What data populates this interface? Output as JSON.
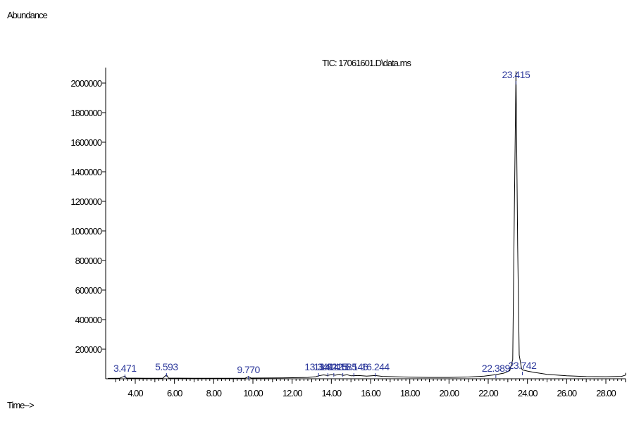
{
  "chart_data": {
    "type": "line",
    "title": "TIC: 17061601.D\\data.ms",
    "ylabel": "Abundance",
    "xlabel": "Time-->",
    "xlim": [
      2.6,
      29.8
    ],
    "ylim": [
      0,
      2100000
    ],
    "x_ticks": [
      4.0,
      6.0,
      8.0,
      10.0,
      12.0,
      14.0,
      16.0,
      18.0,
      20.0,
      22.0,
      24.0,
      26.0,
      28.0
    ],
    "x_tick_labels": [
      "4.00",
      "6.00",
      "8.00",
      "10.00",
      "12.00",
      "14.00",
      "16.00",
      "18.00",
      "20.00",
      "22.00",
      "24.00",
      "26.00",
      "28.00"
    ],
    "y_ticks": [
      200000,
      400000,
      600000,
      800000,
      1000000,
      1200000,
      1400000,
      1600000,
      1800000,
      2000000
    ],
    "y_tick_labels": [
      "200000",
      "400000",
      "600000",
      "800000",
      "1000000",
      "1200000",
      "1400000",
      "1600000",
      "1800000",
      "2000000"
    ],
    "series": [
      {
        "x": [
          2.6,
          3.2,
          3.47,
          3.55,
          4.5,
          5.4,
          5.59,
          5.7,
          7.0,
          8.5,
          9.6,
          9.77,
          9.9,
          11.5,
          12.8,
          13.2,
          13.35,
          13.6,
          13.8,
          14.0,
          14.2,
          14.4,
          14.6,
          14.8,
          15.0,
          15.4,
          15.8,
          16.24,
          16.6,
          17.2,
          18.0,
          19.0,
          20.0,
          21.0,
          21.8,
          22.39,
          22.8,
          23.1,
          23.25,
          23.33,
          23.415,
          23.5,
          23.58,
          23.7,
          23.742,
          24.0,
          24.4,
          25.0,
          26.0,
          27.0,
          28.0,
          28.8,
          29.4,
          29.8
        ],
        "y": [
          3000,
          3500,
          18000,
          5000,
          4000,
          4000,
          26000,
          5000,
          4000,
          4000,
          4000,
          14000,
          5000,
          6000,
          9000,
          14000,
          20000,
          26000,
          22000,
          28000,
          24000,
          30000,
          23000,
          27000,
          20000,
          22000,
          18000,
          22000,
          16000,
          14000,
          11000,
          9000,
          9000,
          12000,
          18000,
          28000,
          38000,
          55000,
          130000,
          1100000,
          2080000,
          900000,
          160000,
          70000,
          60000,
          52000,
          42000,
          30000,
          20000,
          15000,
          14000,
          16000,
          25000,
          40000
        ]
      }
    ],
    "peak_labels": [
      {
        "text": "3.471",
        "x": 3.471
      },
      {
        "text": "5.593",
        "x": 5.593
      },
      {
        "text": "9.770",
        "x": 9.77
      },
      {
        "text": "13.349",
        "x": 13.349
      },
      {
        "text": "13.821",
        "x": 13.821
      },
      {
        "text": "14.125",
        "x": 14.125
      },
      {
        "text": "14.585",
        "x": 14.585
      },
      {
        "text": "15.146",
        "x": 15.146
      },
      {
        "text": "16.244",
        "x": 16.244
      },
      {
        "text": "22.389",
        "x": 22.389
      },
      {
        "text": "23.415",
        "x": 23.415
      },
      {
        "text": "23.742",
        "x": 23.742
      }
    ],
    "grid": false,
    "legend": "none"
  }
}
